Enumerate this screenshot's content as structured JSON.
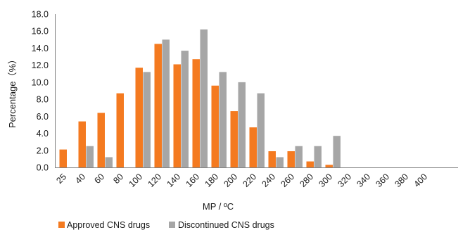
{
  "chart_data": {
    "type": "bar",
    "categories": [
      "25",
      "40",
      "60",
      "80",
      "100",
      "120",
      "140",
      "160",
      "180",
      "200",
      "220",
      "240",
      "260",
      "280",
      "300",
      "320",
      "340",
      "360",
      "380",
      "400"
    ],
    "series": [
      {
        "name": "Approved CNS drugs",
        "color": "#F47A20",
        "values": [
          2.1,
          5.4,
          6.4,
          8.7,
          11.7,
          14.5,
          12.1,
          12.7,
          9.6,
          6.6,
          4.7,
          1.9,
          1.9,
          0.7,
          0.3,
          0,
          0,
          0,
          0,
          0
        ]
      },
      {
        "name": "Discontinued CNS drugs",
        "color": "#A6A6A6",
        "values": [
          0,
          2.5,
          1.2,
          0,
          11.2,
          15.0,
          13.7,
          16.2,
          11.2,
          10.0,
          8.7,
          1.2,
          2.5,
          2.5,
          3.7,
          0,
          0,
          0,
          0,
          0
        ]
      }
    ],
    "xlabel": "MP / ºC",
    "ylabel": "Percentage（%）",
    "ylim": [
      0,
      18
    ],
    "yticks": [
      "0.0",
      "2.0",
      "4.0",
      "6.0",
      "8.0",
      "10.0",
      "12.0",
      "14.0",
      "16.0",
      "18.0"
    ],
    "grid": false,
    "legend_position": "bottom"
  }
}
